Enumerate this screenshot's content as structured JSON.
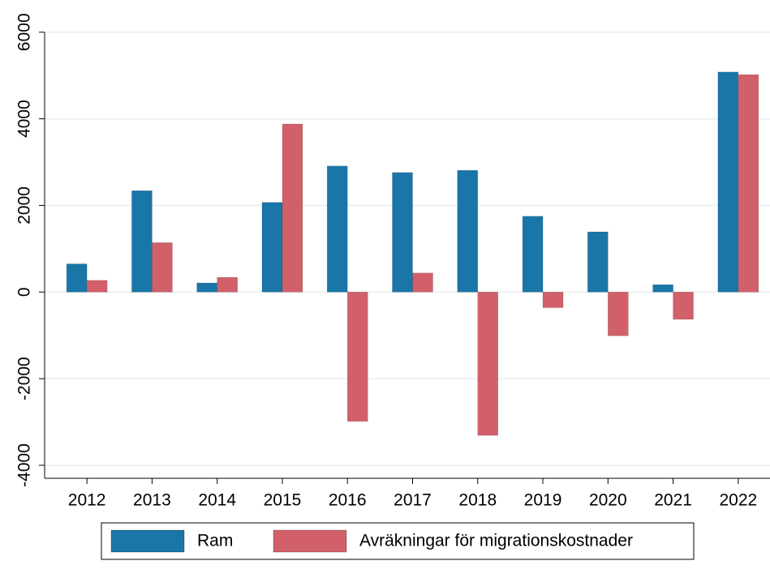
{
  "chart_data": {
    "type": "bar",
    "categories": [
      "2012",
      "2013",
      "2014",
      "2015",
      "2016",
      "2017",
      "2018",
      "2019",
      "2020",
      "2021",
      "2022"
    ],
    "series": [
      {
        "name": "Ram",
        "color": "#1a76a8",
        "values": [
          650,
          2340,
          210,
          2070,
          2910,
          2760,
          2810,
          1750,
          1390,
          170,
          5080
        ]
      },
      {
        "name": "Avräkningar för migrationskostnader",
        "color": "#d1606b",
        "values": [
          270,
          1140,
          340,
          3880,
          -2985,
          440,
          -3310,
          -360,
          -1010,
          -630,
          5020
        ]
      }
    ],
    "ylim": [
      -4300,
      6500
    ],
    "yticks": [
      -4000,
      -2000,
      0,
      2000,
      4000,
      6000
    ],
    "grid": true,
    "legend": "bottom"
  }
}
